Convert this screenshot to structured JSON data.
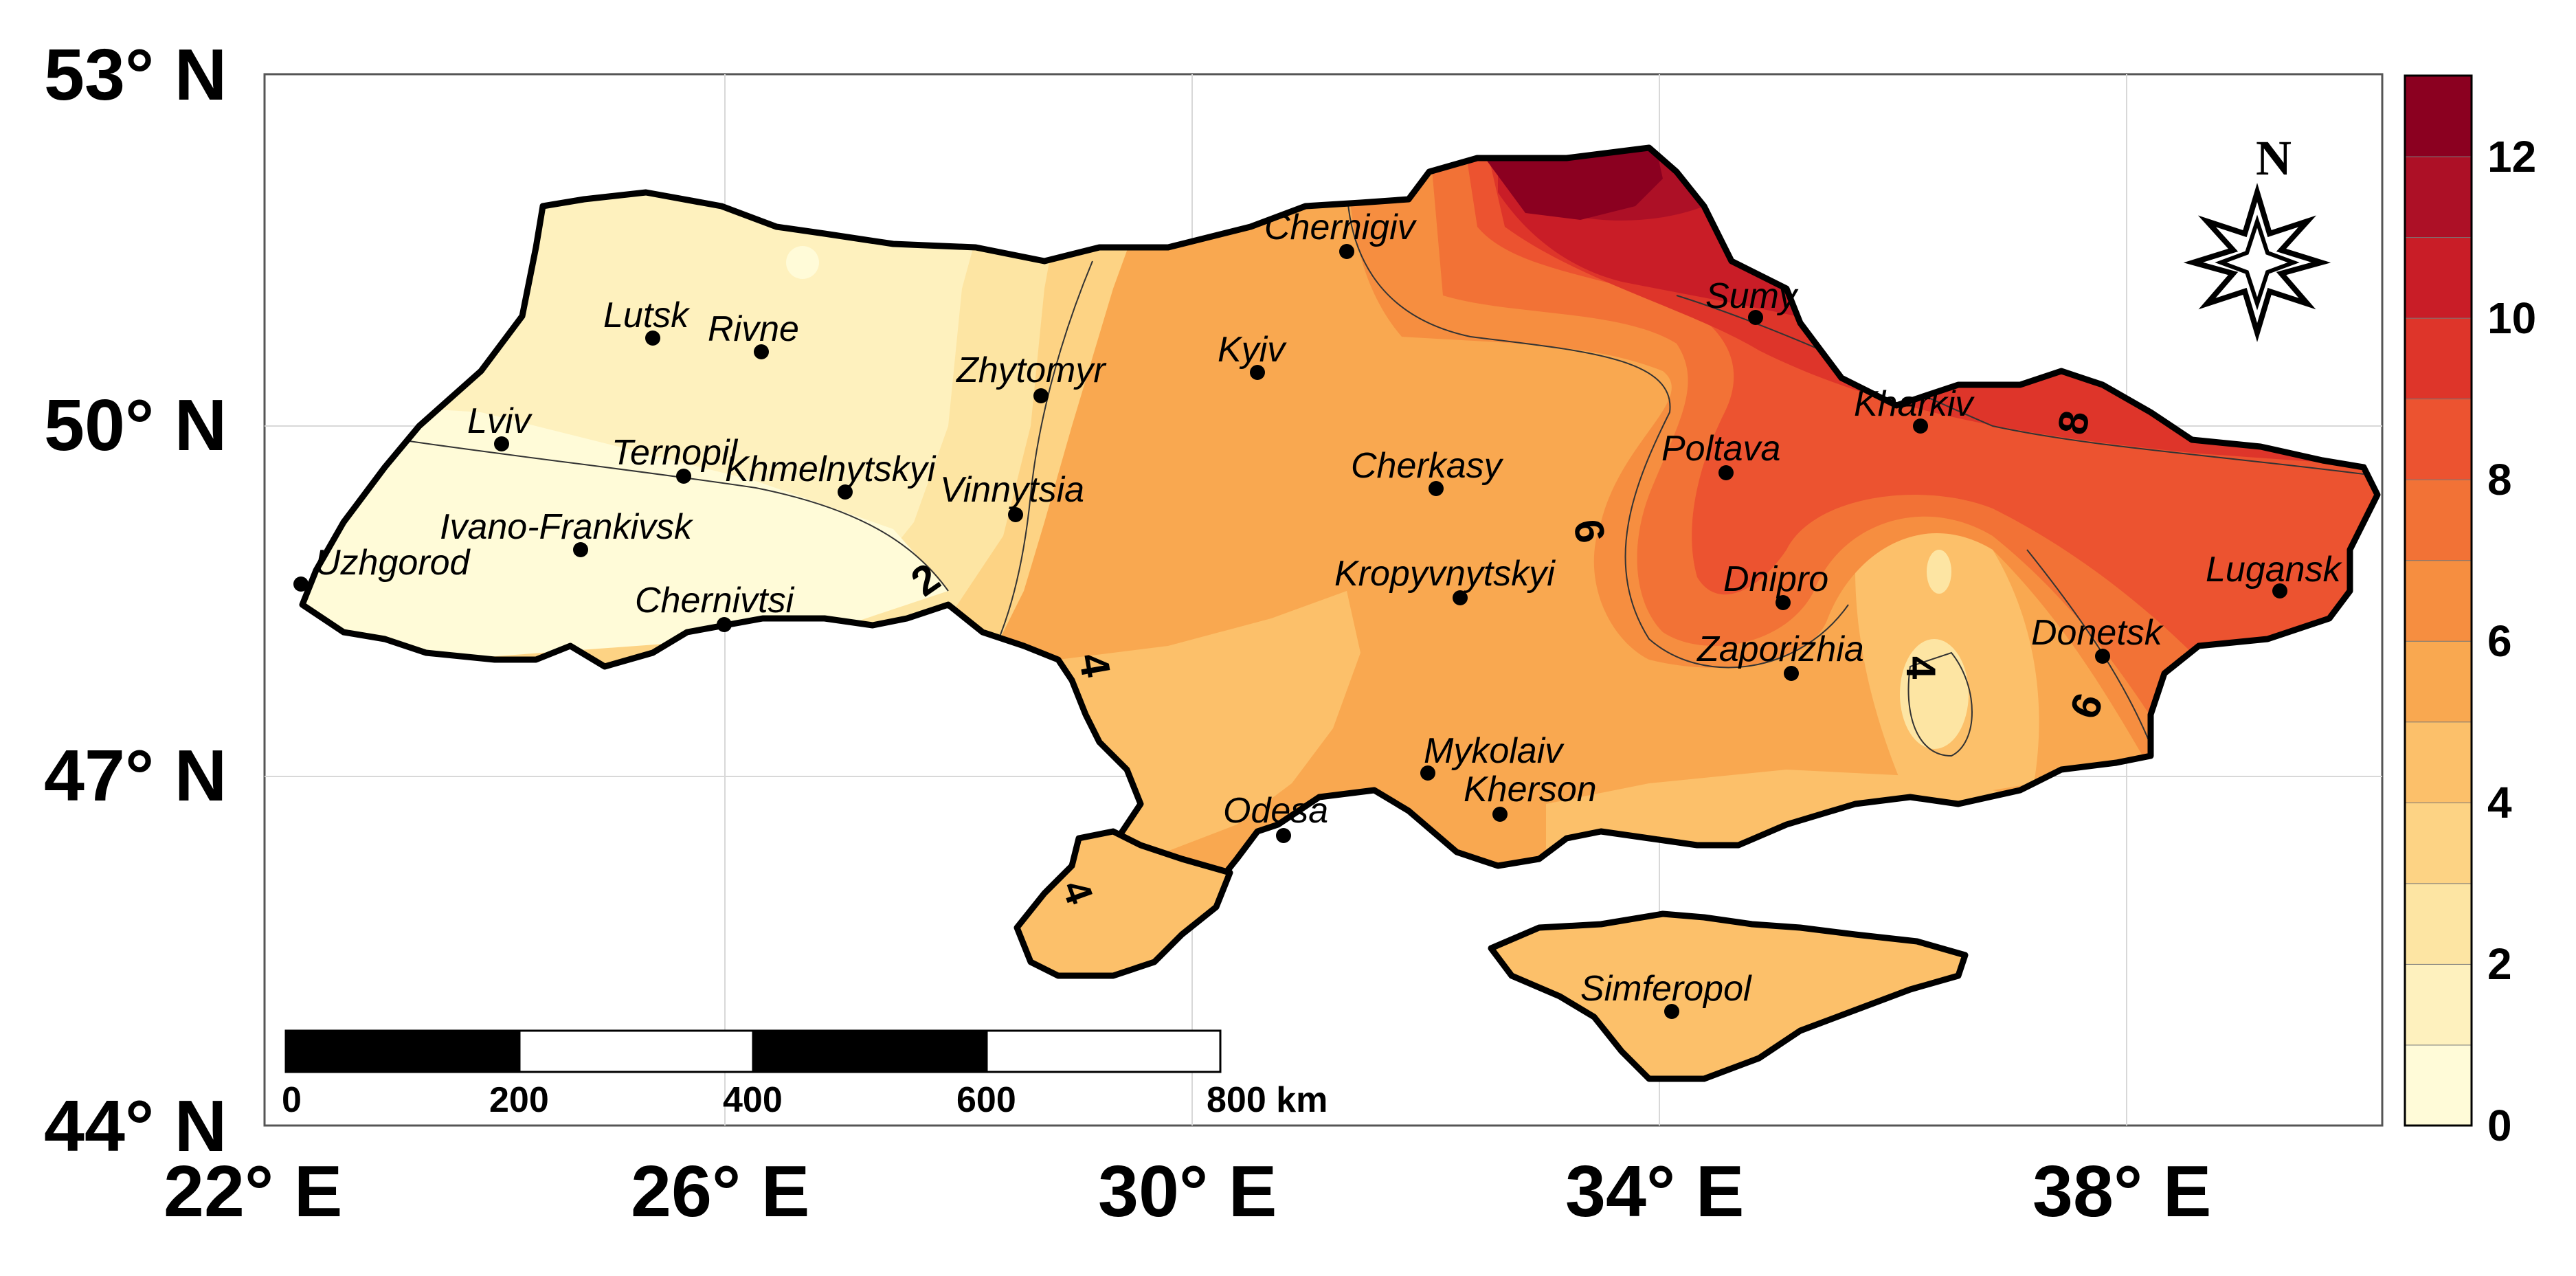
{
  "axes": {
    "y_ticks": [
      "53° N",
      "50° N",
      "47° N",
      "44° N"
    ],
    "x_ticks": [
      "22° E",
      "26° E",
      "30° E",
      "34° E",
      "38° E"
    ]
  },
  "cities": [
    {
      "id": "chernigiv",
      "name": "Chernigiv"
    },
    {
      "id": "sumy",
      "name": "Sumy"
    },
    {
      "id": "lutsk",
      "name": "Lutsk"
    },
    {
      "id": "rivne",
      "name": "Rivne"
    },
    {
      "id": "zhytomyr",
      "name": "Zhytomyr"
    },
    {
      "id": "kyiv",
      "name": "Kyiv"
    },
    {
      "id": "kharkiv",
      "name": "Kharkiv"
    },
    {
      "id": "lviv",
      "name": "Lviv"
    },
    {
      "id": "ternopil",
      "name": "Ternopil"
    },
    {
      "id": "khmelnytskyi",
      "name": "Khmelnytskyi"
    },
    {
      "id": "vinnytsia",
      "name": "Vinnytsia"
    },
    {
      "id": "cherkasy",
      "name": "Cherkasy"
    },
    {
      "id": "poltava",
      "name": "Poltava"
    },
    {
      "id": "ivano-frankivsk",
      "name": "Ivano-Frankivsk"
    },
    {
      "id": "uzhgorod",
      "name": "Uzhgorod"
    },
    {
      "id": "chernivtsi",
      "name": "Chernivtsi"
    },
    {
      "id": "kropyvnytskyi",
      "name": "Kropyvnytskyi"
    },
    {
      "id": "dnipro",
      "name": "Dnipro"
    },
    {
      "id": "lugansk",
      "name": "Lugansk"
    },
    {
      "id": "zaporizhia",
      "name": "Zaporizhia"
    },
    {
      "id": "donetsk",
      "name": "Donetsk"
    },
    {
      "id": "mykolaiv",
      "name": "Mykolaiv"
    },
    {
      "id": "kherson",
      "name": "Kherson"
    },
    {
      "id": "odesa",
      "name": "Odesa"
    },
    {
      "id": "simferopol",
      "name": "Simferopol"
    }
  ],
  "contour_labels": [
    "2",
    "4",
    "6",
    "8",
    "4",
    "6",
    "4"
  ],
  "colorbar": {
    "ticks": [
      "12",
      "10",
      "8",
      "6",
      "4",
      "2",
      "0"
    ],
    "colors": [
      "#fffbd8",
      "#fef1be",
      "#fde5a3",
      "#fdd384",
      "#fcc06a",
      "#f9a850",
      "#f68e40",
      "#f27236",
      "#ec5330",
      "#de352a",
      "#c91d27",
      "#ad1026",
      "#8b0020"
    ]
  },
  "scale_bar": {
    "ticks": [
      "0",
      "200",
      "400",
      "600",
      "800 km"
    ]
  },
  "north_arrow": {
    "letter": "N",
    "icon": "compass-star-icon"
  }
}
